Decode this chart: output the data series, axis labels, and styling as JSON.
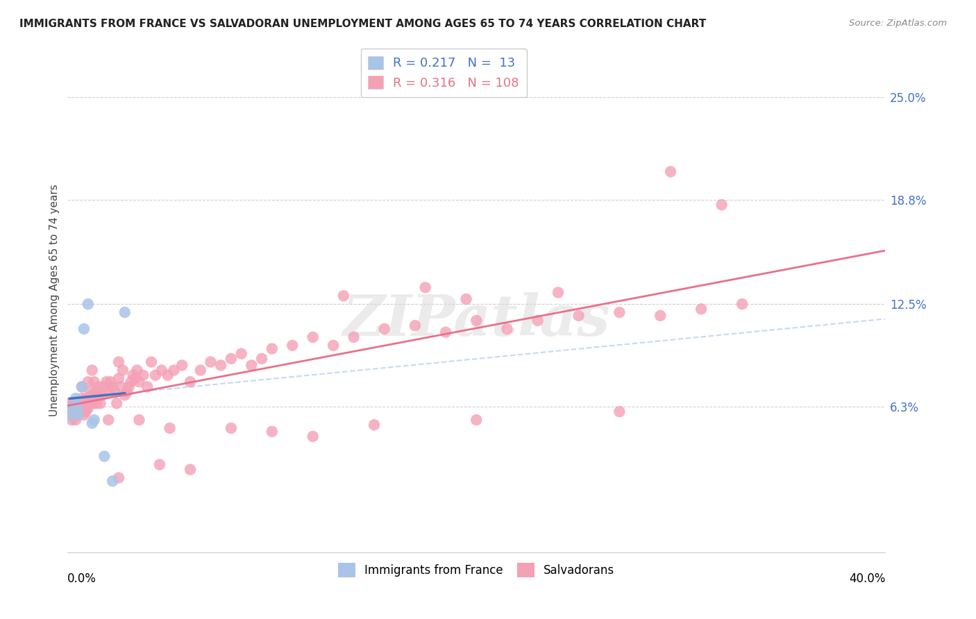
{
  "title": "IMMIGRANTS FROM FRANCE VS SALVADORAN UNEMPLOYMENT AMONG AGES 65 TO 74 YEARS CORRELATION CHART",
  "source": "Source: ZipAtlas.com",
  "ylabel": "Unemployment Among Ages 65 to 74 years",
  "ytick_values": [
    0.063,
    0.125,
    0.188,
    0.25
  ],
  "ytick_labels": [
    "6.3%",
    "12.5%",
    "18.8%",
    "25.0%"
  ],
  "xlim": [
    0.0,
    0.4
  ],
  "ylim": [
    -0.025,
    0.28
  ],
  "legend_france_R": "0.217",
  "legend_france_N": "13",
  "legend_salv_R": "0.316",
  "legend_salv_N": "108",
  "france_color": "#a8c4e8",
  "salv_color": "#f4a0b5",
  "france_line_color": "#4472c4",
  "salv_line_color": "#e8718a",
  "dashed_line_color": "#a8c4e8",
  "background_color": "#ffffff",
  "france_x": [
    0.001,
    0.002,
    0.004,
    0.005,
    0.005,
    0.007,
    0.008,
    0.01,
    0.012,
    0.013,
    0.018,
    0.022,
    0.028
  ],
  "france_y": [
    0.058,
    0.062,
    0.068,
    0.062,
    0.058,
    0.075,
    0.11,
    0.125,
    0.053,
    0.055,
    0.033,
    0.018,
    0.12
  ],
  "salv_x": [
    0.001,
    0.001,
    0.002,
    0.002,
    0.002,
    0.003,
    0.003,
    0.003,
    0.003,
    0.004,
    0.004,
    0.004,
    0.005,
    0.005,
    0.005,
    0.006,
    0.006,
    0.007,
    0.007,
    0.008,
    0.008,
    0.009,
    0.009,
    0.01,
    0.01,
    0.011,
    0.011,
    0.012,
    0.012,
    0.013,
    0.013,
    0.014,
    0.014,
    0.015,
    0.015,
    0.016,
    0.017,
    0.018,
    0.019,
    0.02,
    0.021,
    0.022,
    0.023,
    0.024,
    0.025,
    0.025,
    0.026,
    0.027,
    0.028,
    0.029,
    0.03,
    0.031,
    0.032,
    0.033,
    0.034,
    0.035,
    0.037,
    0.039,
    0.041,
    0.043,
    0.046,
    0.049,
    0.052,
    0.056,
    0.06,
    0.065,
    0.07,
    0.075,
    0.08,
    0.085,
    0.09,
    0.095,
    0.1,
    0.11,
    0.12,
    0.13,
    0.14,
    0.155,
    0.17,
    0.185,
    0.2,
    0.215,
    0.23,
    0.25,
    0.27,
    0.29,
    0.31,
    0.33,
    0.025,
    0.045,
    0.06,
    0.12,
    0.135,
    0.175,
    0.195,
    0.24,
    0.02,
    0.035,
    0.05,
    0.08,
    0.1,
    0.15,
    0.2,
    0.27,
    0.295,
    0.32
  ],
  "salv_y": [
    0.065,
    0.06,
    0.063,
    0.06,
    0.055,
    0.06,
    0.063,
    0.058,
    0.065,
    0.06,
    0.058,
    0.055,
    0.06,
    0.063,
    0.058,
    0.06,
    0.065,
    0.068,
    0.075,
    0.058,
    0.065,
    0.06,
    0.068,
    0.062,
    0.078,
    0.065,
    0.072,
    0.07,
    0.085,
    0.065,
    0.078,
    0.065,
    0.072,
    0.07,
    0.075,
    0.065,
    0.07,
    0.075,
    0.078,
    0.072,
    0.078,
    0.075,
    0.072,
    0.065,
    0.08,
    0.09,
    0.075,
    0.085,
    0.07,
    0.072,
    0.075,
    0.078,
    0.082,
    0.08,
    0.085,
    0.078,
    0.082,
    0.075,
    0.09,
    0.082,
    0.085,
    0.082,
    0.085,
    0.088,
    0.078,
    0.085,
    0.09,
    0.088,
    0.092,
    0.095,
    0.088,
    0.092,
    0.098,
    0.1,
    0.105,
    0.1,
    0.105,
    0.11,
    0.112,
    0.108,
    0.115,
    0.11,
    0.115,
    0.118,
    0.12,
    0.118,
    0.122,
    0.125,
    0.02,
    0.028,
    0.025,
    0.045,
    0.13,
    0.135,
    0.128,
    0.132,
    0.055,
    0.055,
    0.05,
    0.05,
    0.048,
    0.052,
    0.055,
    0.06,
    0.205,
    0.185
  ]
}
